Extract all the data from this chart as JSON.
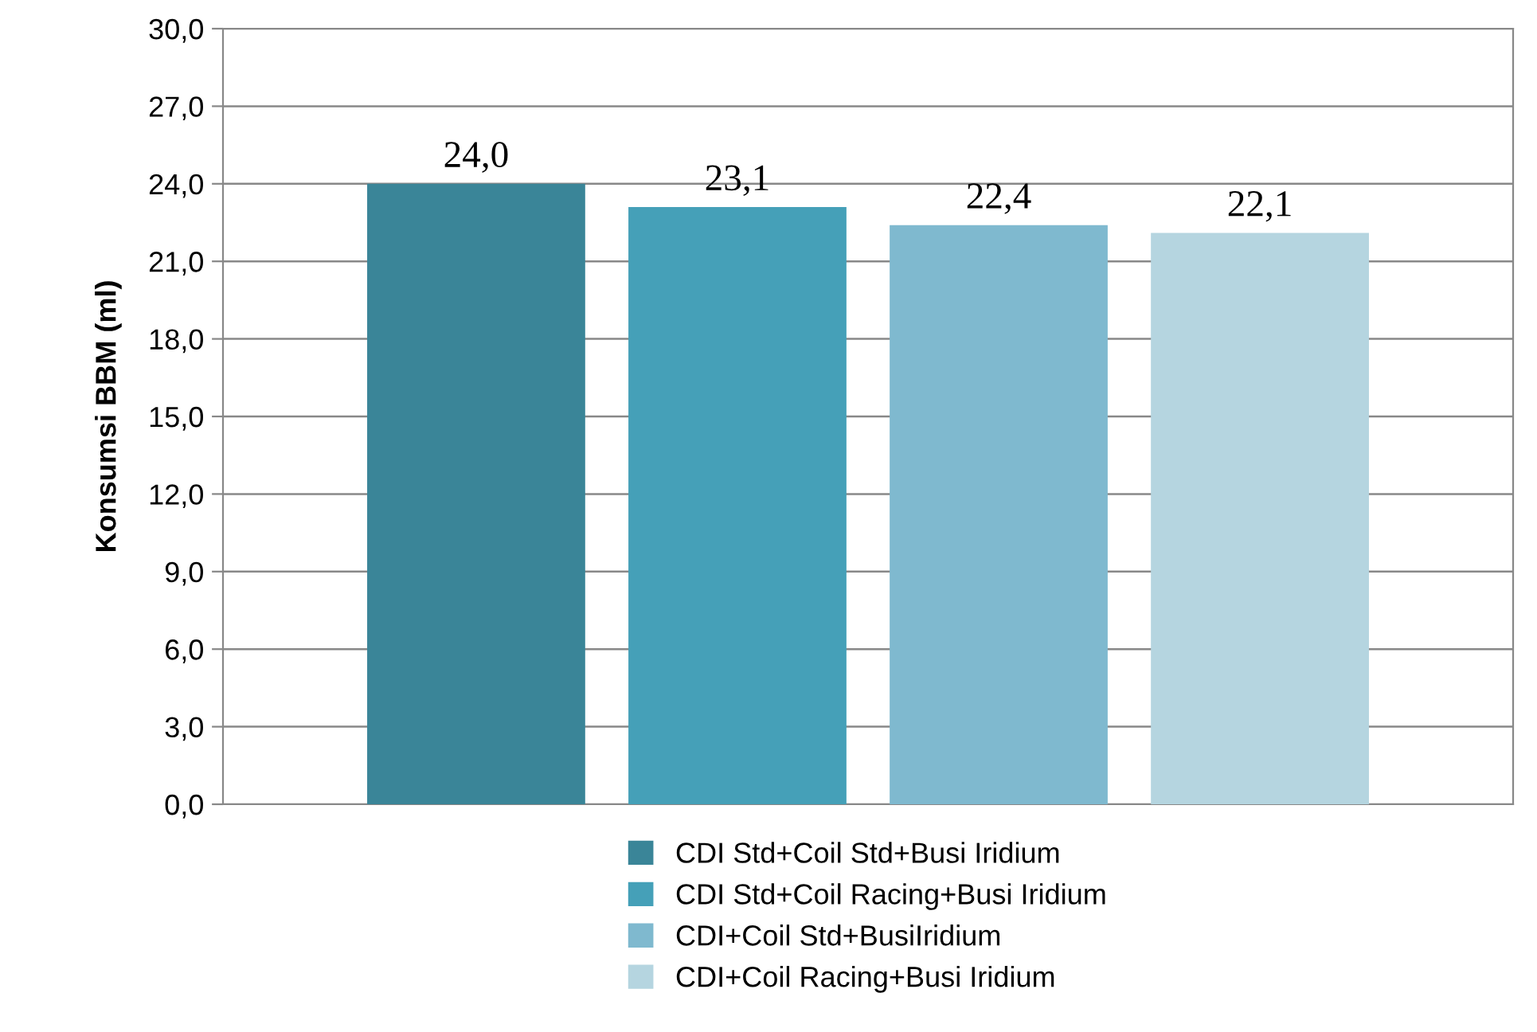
{
  "chart_data": {
    "type": "bar",
    "ylabel": "Konsumsi BBM (ml)",
    "categories": [
      null
    ],
    "series": [
      {
        "name": "CDI Std+Coil Std+Busi Iridium",
        "color": "#3a8598",
        "values": [
          24.0
        ],
        "value_labels": [
          "24,0"
        ]
      },
      {
        "name": "CDI Std+Coil Racing+Busi Iridium",
        "color": "#45a0b8",
        "values": [
          23.1
        ],
        "value_labels": [
          "23,1"
        ]
      },
      {
        "name": "CDI+Coil Std+BusiIridium",
        "color": "#7fb9cf",
        "values": [
          22.4
        ],
        "value_labels": [
          "22,4"
        ]
      },
      {
        "name": "CDI+Coil Racing+Busi Iridium",
        "color": "#b5d5e0",
        "values": [
          22.1
        ],
        "value_labels": [
          "22,1"
        ]
      }
    ],
    "ylim": [
      0,
      30
    ],
    "yticks": [
      {
        "value": 0,
        "label": "0,0"
      },
      {
        "value": 3,
        "label": "3,0"
      },
      {
        "value": 6,
        "label": "6,0"
      },
      {
        "value": 9,
        "label": "9,0"
      },
      {
        "value": 12,
        "label": "12,0"
      },
      {
        "value": 15,
        "label": "15,0"
      },
      {
        "value": 18,
        "label": "18,0"
      },
      {
        "value": 21,
        "label": "21,0"
      },
      {
        "value": 24,
        "label": "24,0"
      },
      {
        "value": 27,
        "label": "27,0"
      },
      {
        "value": 30,
        "label": "30,0"
      }
    ],
    "grid": "y",
    "legend": "bottom"
  }
}
